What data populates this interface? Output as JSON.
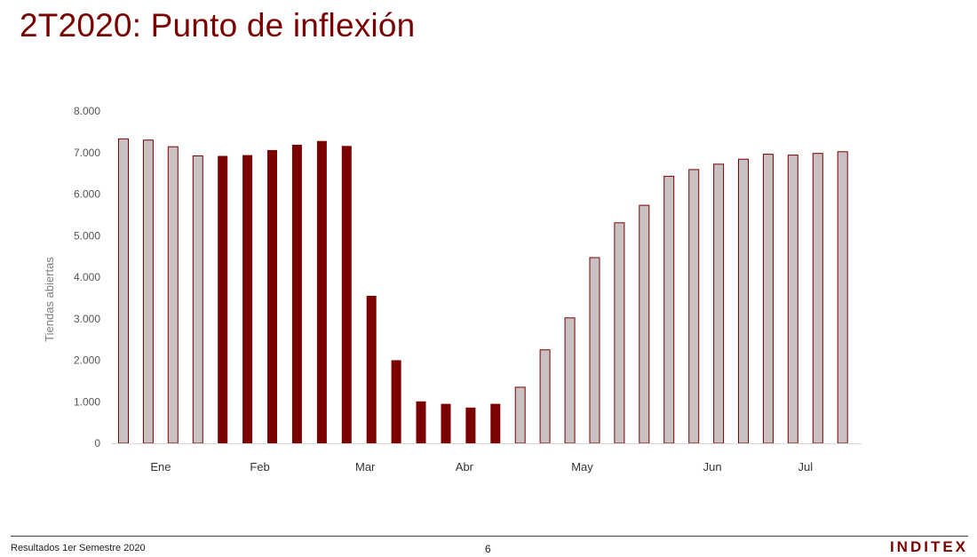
{
  "page": {
    "title": "2T2020: Punto de inflexión",
    "footer_left": "Resultados 1er Semestre 2020",
    "page_number": "6",
    "brand": "INDITEX"
  },
  "colors": {
    "title": "#7a0000",
    "dark_bar": "#7b0000",
    "light_bar_fill": "#c9c0c2",
    "light_bar_stroke": "#7b0000"
  },
  "chart_data": {
    "type": "bar",
    "title": "",
    "xlabel": "",
    "ylabel": "Tiendas abiertas",
    "ylim": [
      0,
      8000
    ],
    "y_ticks": [
      "0",
      "1.000",
      "2.000",
      "3.000",
      "4.000",
      "5.000",
      "6.000",
      "7.000",
      "8.000"
    ],
    "grid": false,
    "legend": "none",
    "month_labels": [
      {
        "label": "Ene",
        "at_bar": 1.5
      },
      {
        "label": "Feb",
        "at_bar": 5.5
      },
      {
        "label": "Mar",
        "at_bar": 9.75
      },
      {
        "label": "Abr",
        "at_bar": 13.75
      },
      {
        "label": "May",
        "at_bar": 18.5
      },
      {
        "label": "Jun",
        "at_bar": 23.75
      },
      {
        "label": "Jul",
        "at_bar": 27.5
      }
    ],
    "series": [
      {
        "values": [
          7330,
          7300,
          7140,
          6920,
          6920,
          6940,
          7060,
          7190,
          7280,
          7160,
          3550,
          2000,
          1010,
          950,
          860,
          950,
          1350,
          2250,
          3020,
          4470,
          5310,
          5730,
          6430,
          6590,
          6720,
          6840,
          6960,
          6940,
          6980,
          7020
        ],
        "highlight": [
          false,
          false,
          false,
          false,
          true,
          true,
          true,
          true,
          true,
          true,
          true,
          true,
          true,
          true,
          true,
          true,
          false,
          false,
          false,
          false,
          false,
          false,
          false,
          false,
          false,
          false,
          false,
          false,
          false,
          false
        ]
      }
    ]
  }
}
